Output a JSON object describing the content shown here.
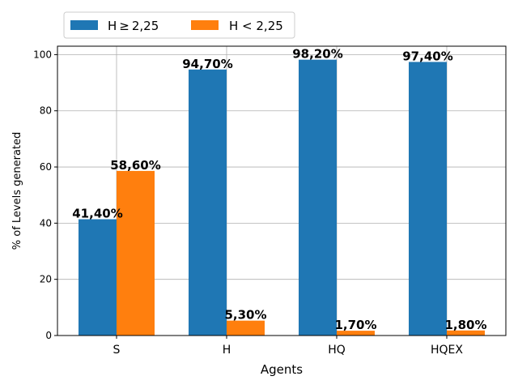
{
  "chart_data": {
    "type": "bar",
    "title": "",
    "xlabel": "Agents",
    "ylabel": "% of Levels generated",
    "categories": [
      "S",
      "H",
      "HQ",
      "HQEX"
    ],
    "series": [
      {
        "name": "H ≥ 2,25",
        "color": "#1f77b4",
        "values": [
          41.4,
          94.7,
          98.2,
          97.4
        ],
        "labels": [
          "41,40%",
          "94,70%",
          "98,20%",
          "97,40%"
        ]
      },
      {
        "name": "H < 2,25",
        "color": "#ff7f0e",
        "values": [
          58.6,
          5.3,
          1.7,
          1.8
        ],
        "labels": [
          "58,60%",
          "5,30%",
          "1,70%",
          "1,80%"
        ]
      }
    ],
    "ylim": [
      0,
      103
    ],
    "yticks": [
      0,
      20,
      40,
      60,
      80,
      100
    ],
    "grid": true,
    "legend": "top-left, above plot"
  }
}
